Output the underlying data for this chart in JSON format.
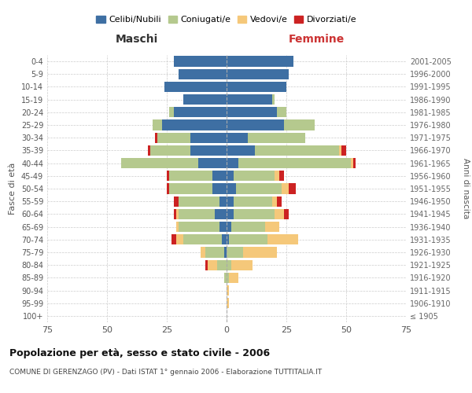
{
  "age_groups": [
    "100+",
    "95-99",
    "90-94",
    "85-89",
    "80-84",
    "75-79",
    "70-74",
    "65-69",
    "60-64",
    "55-59",
    "50-54",
    "45-49",
    "40-44",
    "35-39",
    "30-34",
    "25-29",
    "20-24",
    "15-19",
    "10-14",
    "5-9",
    "0-4"
  ],
  "birth_years": [
    "≤ 1905",
    "1906-1910",
    "1911-1915",
    "1916-1920",
    "1921-1925",
    "1926-1930",
    "1931-1935",
    "1936-1940",
    "1941-1945",
    "1946-1950",
    "1951-1955",
    "1956-1960",
    "1961-1965",
    "1966-1970",
    "1971-1975",
    "1976-1980",
    "1981-1985",
    "1986-1990",
    "1991-1995",
    "1996-2000",
    "2001-2005"
  ],
  "colors": {
    "celibe": "#3e6fa3",
    "coniugato": "#b5c98e",
    "vedovo": "#f5c87a",
    "divorziato": "#cc2222"
  },
  "males": {
    "celibe": [
      0,
      0,
      0,
      0,
      0,
      1,
      2,
      3,
      5,
      3,
      6,
      6,
      12,
      15,
      15,
      27,
      22,
      18,
      26,
      20,
      22
    ],
    "coniugato": [
      0,
      0,
      0,
      1,
      4,
      8,
      16,
      17,
      15,
      17,
      18,
      18,
      32,
      17,
      14,
      4,
      2,
      0,
      0,
      0,
      0
    ],
    "vedovo": [
      0,
      0,
      0,
      0,
      4,
      2,
      3,
      1,
      1,
      0,
      0,
      0,
      0,
      0,
      0,
      0,
      0,
      0,
      0,
      0,
      0
    ],
    "divorziato": [
      0,
      0,
      0,
      0,
      1,
      0,
      2,
      0,
      1,
      2,
      1,
      1,
      0,
      1,
      1,
      0,
      0,
      0,
      0,
      0,
      0
    ]
  },
  "females": {
    "nubile": [
      0,
      0,
      0,
      0,
      0,
      0,
      1,
      2,
      3,
      3,
      4,
      3,
      5,
      12,
      9,
      24,
      21,
      19,
      25,
      26,
      28
    ],
    "coniugata": [
      0,
      0,
      0,
      1,
      2,
      7,
      16,
      14,
      17,
      16,
      19,
      17,
      47,
      35,
      24,
      13,
      4,
      1,
      0,
      0,
      0
    ],
    "vedova": [
      0,
      1,
      1,
      4,
      9,
      14,
      13,
      6,
      4,
      2,
      3,
      2,
      1,
      1,
      0,
      0,
      0,
      0,
      0,
      0,
      0
    ],
    "divorziata": [
      0,
      0,
      0,
      0,
      0,
      0,
      0,
      0,
      2,
      2,
      3,
      2,
      1,
      2,
      0,
      0,
      0,
      0,
      0,
      0,
      0
    ]
  },
  "xlim": 75,
  "title": "Popolazione per età, sesso e stato civile - 2006",
  "subtitle": "COMUNE DI GERENZAGO (PV) - Dati ISTAT 1° gennaio 2006 - Elaborazione TUTTITALIA.IT",
  "ylabel_left": "Fasce di età",
  "ylabel_right": "Anni di nascita",
  "xlabel_left": "Maschi",
  "xlabel_right": "Femmine",
  "legend_labels": [
    "Celibi/Nubili",
    "Coniugati/e",
    "Vedovi/e",
    "Divorziati/e"
  ],
  "bg_color": "#ffffff",
  "grid_color": "#cccccc",
  "maschi_color": "#333333",
  "femmine_color": "#cc3333"
}
